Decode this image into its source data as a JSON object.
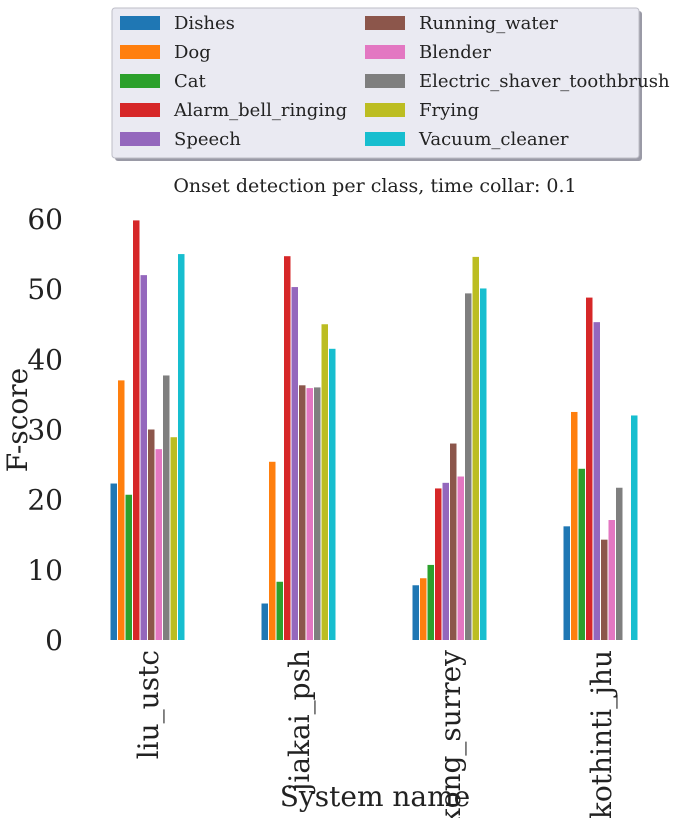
{
  "chart_data": {
    "type": "bar",
    "title": "Onset detection per class, time collar: 0.1",
    "xlabel": "System name",
    "ylabel": "F-score",
    "categories": [
      "liu_ustc",
      "jiakai_psh",
      "kong_surrey",
      "kothinti_jhu"
    ],
    "ylim": [
      0,
      62
    ],
    "yticks": [
      0,
      10,
      20,
      30,
      40,
      50,
      60
    ],
    "grid": false,
    "legend_position": "top",
    "legend_columns": 2,
    "series": [
      {
        "name": "Dishes",
        "color": "#1f77b4",
        "values": [
          22.3,
          5.2,
          7.8,
          16.2
        ]
      },
      {
        "name": "Dog",
        "color": "#ff7f0e",
        "values": [
          37.0,
          25.4,
          8.8,
          32.5
        ]
      },
      {
        "name": "Cat",
        "color": "#2ca02c",
        "values": [
          20.7,
          8.3,
          10.7,
          24.4
        ]
      },
      {
        "name": "Alarm_bell_ringing",
        "color": "#d62728",
        "values": [
          59.8,
          54.7,
          21.6,
          48.8
        ]
      },
      {
        "name": "Speech",
        "color": "#9467bd",
        "values": [
          52.0,
          50.3,
          22.4,
          45.3
        ]
      },
      {
        "name": "Running_water",
        "color": "#8c564b",
        "values": [
          30.0,
          36.3,
          28.0,
          14.3
        ]
      },
      {
        "name": "Blender",
        "color": "#e377c2",
        "values": [
          27.2,
          35.9,
          23.3,
          17.1
        ]
      },
      {
        "name": "Electric_shaver_toothbrush",
        "color": "#7f7f7f",
        "values": [
          37.7,
          36.0,
          49.4,
          21.7
        ]
      },
      {
        "name": "Frying",
        "color": "#bcbd22",
        "values": [
          28.9,
          45.0,
          54.6,
          0
        ]
      },
      {
        "name": "Vacuum_cleaner",
        "color": "#17becf",
        "values": [
          55.0,
          41.5,
          50.1,
          32.0
        ]
      }
    ]
  }
}
